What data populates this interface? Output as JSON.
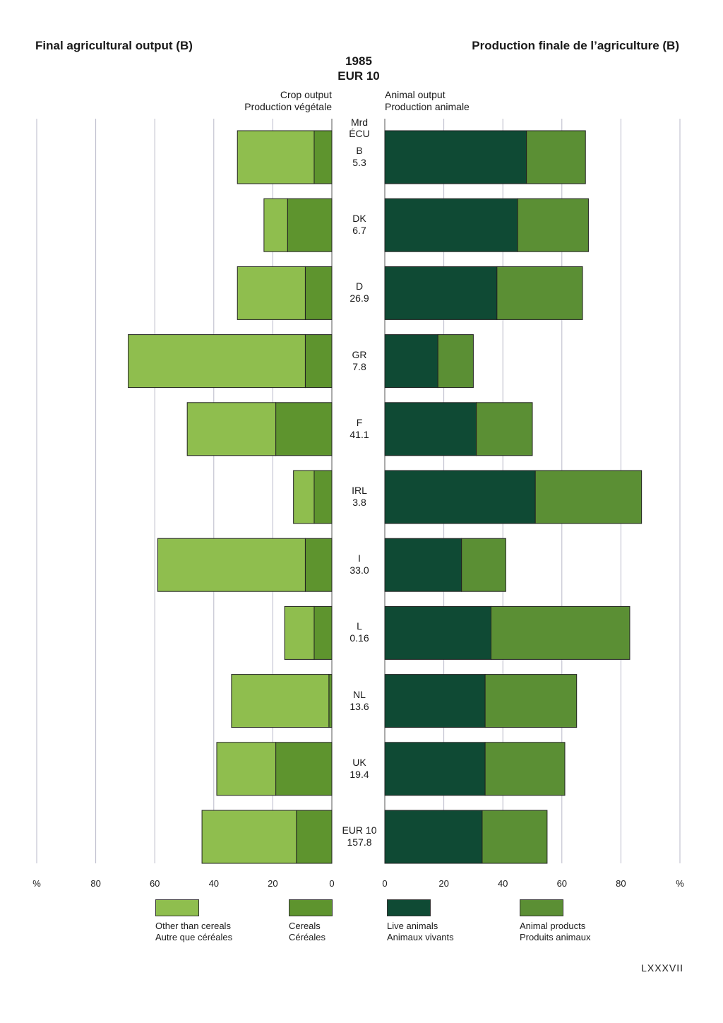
{
  "header": {
    "title_left": "Final agricultural output (B)",
    "title_right": "Production finale de l’agriculture (B)",
    "year": "1985",
    "region": "EUR 10",
    "crop_label_en": "Crop output",
    "crop_label_fr": "Production végétale",
    "animal_label_en": "Animal output",
    "animal_label_fr": "Production animale",
    "unit_line1": "Mrd",
    "unit_line2": "ÉCU"
  },
  "colors": {
    "other_than_cereals": "#8fbe4e",
    "cereals": "#5e942e",
    "live_animals": "#0f4a34",
    "animal_products": "#5b8f34"
  },
  "axis": {
    "unit": "%",
    "left_ticks": [
      "%",
      "80",
      "60",
      "40",
      "20",
      "0"
    ],
    "right_ticks": [
      "0",
      "20",
      "40",
      "60",
      "80",
      "%"
    ]
  },
  "legend": [
    {
      "en": "Other than cereals",
      "fr": "Autre que céréales"
    },
    {
      "en": "Cereals",
      "fr": "Céréales"
    },
    {
      "en": "Live animals",
      "fr": "Animaux vivants"
    },
    {
      "en": "Animal products",
      "fr": "Produits animaux"
    }
  ],
  "page_number": "LXXXVII",
  "chart_data": {
    "type": "bar",
    "xlim": [
      0,
      100
    ],
    "categories": [
      "B",
      "DK",
      "D",
      "GR",
      "F",
      "IRL",
      "I",
      "L",
      "NL",
      "UK",
      "EUR 10"
    ],
    "totals_mrd_ecu": [
      "5.3",
      "6.7",
      "26.9",
      "7.8",
      "41.1",
      "3.8",
      "33.0",
      "0.16",
      "13.6",
      "19.4",
      "157.8"
    ],
    "series": [
      {
        "name": "Cereals",
        "side": "crop",
        "values": [
          6,
          15,
          9,
          9,
          19,
          6,
          9,
          6,
          1,
          19,
          12
        ]
      },
      {
        "name": "Other than cereals",
        "side": "crop",
        "values": [
          26,
          8,
          23,
          60,
          30,
          7,
          50,
          10,
          33,
          20,
          32
        ]
      },
      {
        "name": "Live animals",
        "side": "animal",
        "values": [
          48,
          45,
          38,
          18,
          31,
          51,
          26,
          36,
          34,
          34,
          33
        ]
      },
      {
        "name": "Animal products",
        "side": "animal",
        "values": [
          20,
          24,
          29,
          12,
          19,
          36,
          15,
          47,
          31,
          27,
          22
        ]
      }
    ]
  }
}
